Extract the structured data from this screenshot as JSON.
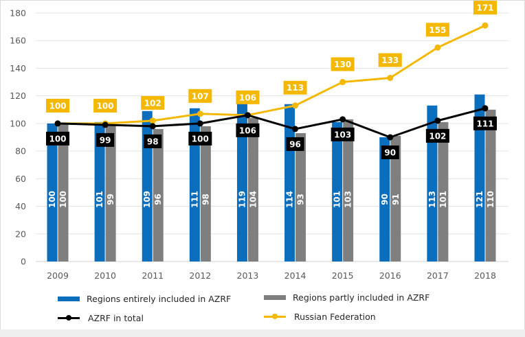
{
  "chart_data": {
    "type": "bar",
    "title": "",
    "xlabel": "",
    "ylabel": "",
    "ylim": [
      0,
      180
    ],
    "yticks": [
      0,
      20,
      40,
      60,
      80,
      100,
      120,
      140,
      160,
      180
    ],
    "grid": true,
    "legend_position": "bottom",
    "categories": [
      "2009",
      "2010",
      "2011",
      "2012",
      "2013",
      "2014",
      "2015",
      "2016",
      "2017",
      "2018"
    ],
    "series": [
      {
        "name": "Regions entirely included in AZRF",
        "type": "bar",
        "color": "#0a6ebd",
        "values": [
          100,
          101,
          109,
          111,
          119,
          114,
          101,
          90,
          113,
          121
        ]
      },
      {
        "name": "Regions partly included in AZRF",
        "type": "bar",
        "color": "#7f7f7f",
        "values": [
          100,
          99,
          96,
          98,
          104,
          93,
          103,
          91,
          101,
          110
        ]
      },
      {
        "name": "AZRF in total",
        "type": "line",
        "color": "#000000",
        "values": [
          100,
          99,
          98,
          100,
          106,
          96,
          103,
          90,
          102,
          111
        ]
      },
      {
        "name": "Russian Federation",
        "type": "line",
        "color": "#f5b800",
        "values": [
          100,
          100,
          102,
          107,
          106,
          113,
          130,
          133,
          155,
          171
        ]
      }
    ]
  },
  "legend": {
    "items": [
      {
        "label": "Regions entirely included in AZRF",
        "kind": "bar",
        "color": "#0a6ebd"
      },
      {
        "label": "Regions partly included in AZRF",
        "kind": "bar",
        "color": "#7f7f7f"
      },
      {
        "label": "AZRF in total",
        "kind": "line",
        "color": "#000000"
      },
      {
        "label": "Russian Federation",
        "kind": "line",
        "color": "#f5b800"
      }
    ]
  }
}
